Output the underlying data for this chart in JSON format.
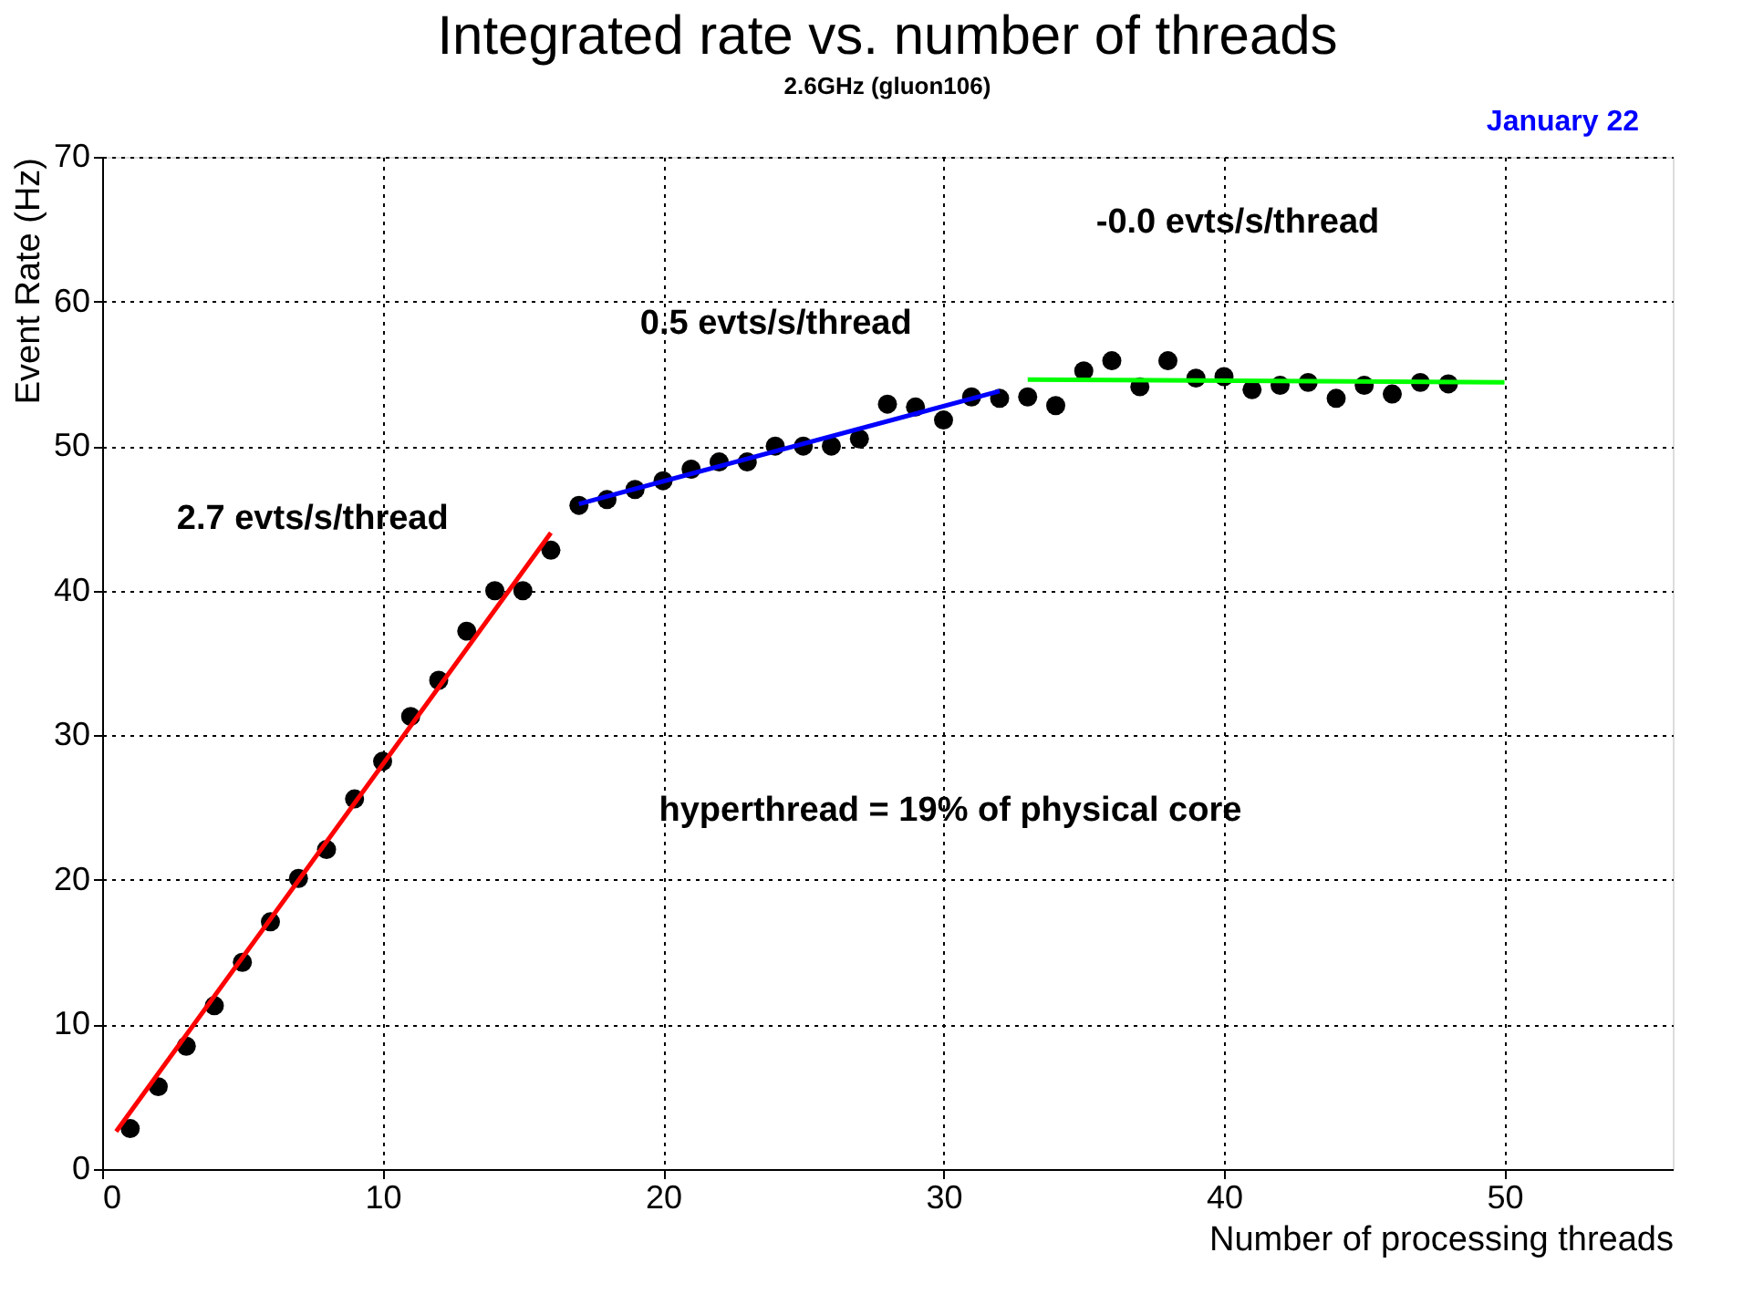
{
  "chart_data": {
    "type": "scatter",
    "title": "Integrated rate vs. number of threads",
    "subtitle": "2.6GHz (gluon106)",
    "xlabel": "Number of processing threads",
    "ylabel": "Event Rate (Hz)",
    "xlim": [
      0,
      56
    ],
    "ylim": [
      0,
      70
    ],
    "xticks": [
      0,
      10,
      20,
      30,
      40,
      50
    ],
    "yticks": [
      0,
      10,
      20,
      30,
      40,
      50,
      60,
      70
    ],
    "grid": true,
    "series": [
      {
        "type": "scatter",
        "marker": "circle",
        "color": "#000000",
        "x": [
          1,
          2,
          3,
          4,
          5,
          6,
          7,
          8,
          9,
          10,
          11,
          12,
          13,
          14,
          15,
          16,
          17,
          18,
          19,
          20,
          21,
          22,
          23,
          24,
          25,
          26,
          27,
          28,
          29,
          30,
          31,
          32,
          33,
          34,
          35,
          36,
          37,
          38,
          39,
          40,
          41,
          42,
          43,
          44,
          45,
          46,
          47,
          48
        ],
        "values": [
          2.8,
          5.7,
          8.5,
          11.3,
          14.3,
          17.1,
          20.1,
          22.1,
          25.6,
          28.2,
          31.3,
          33.8,
          37.2,
          40.0,
          40.0,
          42.8,
          45.9,
          46.3,
          47.0,
          47.6,
          48.4,
          48.9,
          48.9,
          50.0,
          50.0,
          50.0,
          50.5,
          52.9,
          52.7,
          51.8,
          53.4,
          53.3,
          53.4,
          52.8,
          55.2,
          55.9,
          54.1,
          55.9,
          54.7,
          54.8,
          53.9,
          54.2,
          54.4,
          53.3,
          54.2,
          53.6,
          54.4,
          54.3
        ]
      },
      {
        "type": "line",
        "color": "#ff0000",
        "x": [
          0.5,
          16
        ],
        "values": [
          2.6,
          44.0
        ]
      },
      {
        "type": "line",
        "color": "#0000ff",
        "x": [
          17,
          32
        ],
        "values": [
          46.0,
          53.8
        ]
      },
      {
        "type": "line",
        "color": "#00ff00",
        "x": [
          33,
          50
        ],
        "values": [
          54.6,
          54.4
        ]
      }
    ],
    "annotations": [
      "2.7 evts/s/thread",
      "0.5 evts/s/thread",
      "-0.0 evts/s/thread",
      "hyperthread =  19% of physical core",
      "January 22"
    ]
  }
}
